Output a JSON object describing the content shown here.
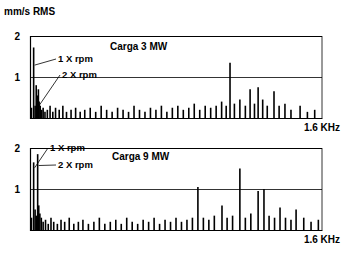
{
  "chart_data": [
    {
      "type": "bar",
      "title": "Carga 3 MW",
      "ylabel": "mm/s RMS",
      "xlabel": "1.6 KHz",
      "x": [
        8,
        20,
        28,
        34,
        40,
        46,
        50,
        56,
        64,
        72,
        82,
        95,
        110,
        125,
        140,
        160,
        180,
        200,
        225,
        250,
        275,
        300,
        330,
        360,
        390,
        420,
        450,
        480,
        510,
        540,
        570,
        600,
        630,
        660,
        690,
        720,
        750,
        780,
        810,
        840,
        870,
        900,
        930,
        960,
        990,
        1020,
        1050,
        1075,
        1096,
        1120,
        1150,
        1180,
        1206,
        1230,
        1250,
        1275,
        1300,
        1337,
        1365,
        1397,
        1430,
        1480,
        1520,
        1560
      ],
      "values": [
        0.25,
        1.72,
        0.3,
        0.8,
        0.55,
        0.7,
        0.4,
        0.3,
        0.2,
        0.25,
        0.15,
        0.2,
        0.3,
        0.15,
        0.25,
        0.2,
        0.3,
        0.15,
        0.2,
        0.25,
        0.15,
        0.2,
        0.25,
        0.15,
        0.3,
        0.2,
        0.15,
        0.25,
        0.2,
        0.15,
        0.3,
        0.2,
        0.15,
        0.25,
        0.2,
        0.3,
        0.15,
        0.25,
        0.3,
        0.2,
        0.25,
        0.35,
        0.2,
        0.3,
        0.25,
        0.3,
        0.4,
        0.3,
        1.35,
        0.35,
        0.45,
        0.3,
        0.7,
        0.35,
        0.75,
        0.45,
        0.3,
        0.65,
        0.3,
        0.35,
        0.2,
        0.3,
        0.15,
        0.2
      ],
      "color": "#000000",
      "xlim": [
        0,
        1600
      ],
      "ylim": [
        0,
        2
      ],
      "yticks": [
        1,
        2
      ],
      "grid": true,
      "tick_labels": "y",
      "annotations": [
        {
          "text": "1 X rpm",
          "x": 20
        },
        {
          "text": "2 X rpm",
          "x": 40
        }
      ]
    },
    {
      "type": "bar",
      "title": "Carga 9 MW",
      "xlabel": "1.6 KHz",
      "x": [
        8,
        20,
        28,
        34,
        42,
        48,
        54,
        62,
        72,
        85,
        100,
        115,
        130,
        150,
        170,
        190,
        215,
        240,
        265,
        290,
        320,
        350,
        380,
        410,
        440,
        470,
        500,
        530,
        560,
        590,
        620,
        650,
        680,
        710,
        740,
        770,
        800,
        830,
        860,
        890,
        920,
        950,
        980,
        1010,
        1052,
        1080,
        1110,
        1150,
        1180,
        1210,
        1250,
        1282,
        1310,
        1340,
        1370,
        1400,
        1430,
        1458,
        1500,
        1540,
        1580
      ],
      "values": [
        0.3,
        1.65,
        0.5,
        0.35,
        1.85,
        0.6,
        0.4,
        0.3,
        0.2,
        0.25,
        0.15,
        0.3,
        0.2,
        0.15,
        0.25,
        0.2,
        0.3,
        0.15,
        0.2,
        0.25,
        0.15,
        0.2,
        0.3,
        0.15,
        0.2,
        0.25,
        0.15,
        0.3,
        0.2,
        0.15,
        0.25,
        0.2,
        0.3,
        0.15,
        0.25,
        0.2,
        0.3,
        0.2,
        0.25,
        0.3,
        1.05,
        0.3,
        0.25,
        0.35,
        0.6,
        0.3,
        0.35,
        1.5,
        0.3,
        0.4,
        0.95,
        1.0,
        0.35,
        0.3,
        0.55,
        0.3,
        0.25,
        0.5,
        0.3,
        0.2,
        0.25
      ],
      "color": "#000000",
      "xlim": [
        0,
        1600
      ],
      "ylim": [
        0,
        2
      ],
      "yticks": [
        1,
        2
      ],
      "grid": true,
      "tick_labels": "y",
      "annotations": [
        {
          "text": "1 X rpm",
          "x": 20
        },
        {
          "text": "2 X rpm",
          "x": 42
        }
      ]
    }
  ]
}
